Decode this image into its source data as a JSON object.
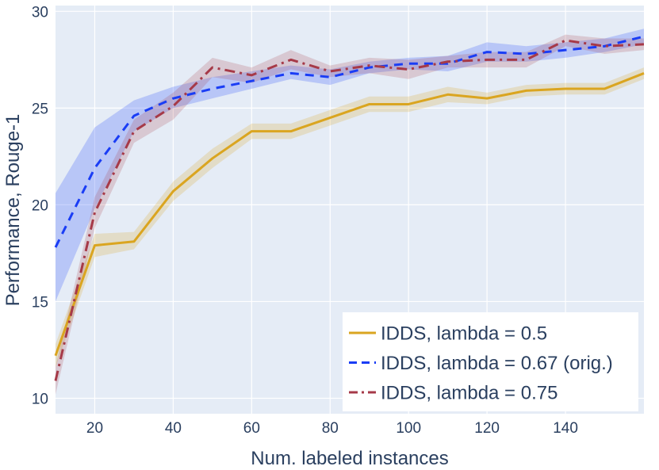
{
  "chart_data": {
    "type": "line",
    "title": "",
    "xlabel": "Num. labeled instances",
    "ylabel": "Performance, Rouge-1",
    "xlim": [
      10,
      160
    ],
    "ylim": [
      9.2,
      30.3
    ],
    "xticks": [
      20,
      40,
      60,
      80,
      100,
      120,
      140
    ],
    "yticks": [
      10,
      15,
      20,
      25,
      30
    ],
    "grid": true,
    "legend_position": "bottom-right",
    "x": [
      10,
      20,
      30,
      40,
      50,
      60,
      70,
      80,
      90,
      100,
      110,
      120,
      130,
      140,
      150,
      160
    ],
    "series": [
      {
        "name": "IDDS, lambda = 0.5",
        "color": "#daa520",
        "band_color": "rgba(218,165,32,0.22)",
        "dash": "solid",
        "values": [
          12.2,
          17.9,
          18.1,
          20.7,
          22.4,
          23.8,
          23.8,
          24.5,
          25.2,
          25.2,
          25.7,
          25.5,
          25.9,
          26.0,
          26.0,
          26.8
        ],
        "lower": [
          11.6,
          17.3,
          17.7,
          20.2,
          21.9,
          23.4,
          23.4,
          24.1,
          24.8,
          24.8,
          25.3,
          25.2,
          25.6,
          25.7,
          25.7,
          26.5
        ],
        "upper": [
          12.8,
          18.5,
          18.6,
          21.2,
          22.9,
          24.2,
          24.2,
          24.9,
          25.6,
          25.6,
          26.1,
          25.8,
          26.2,
          26.3,
          26.3,
          27.1
        ]
      },
      {
        "name": "IDDS, lambda = 0.67 (orig.)",
        "color": "#1a3df5",
        "band_color": "rgba(80,110,250,0.30)",
        "dash": "dash",
        "values": [
          17.8,
          21.9,
          24.6,
          25.5,
          26.0,
          26.4,
          26.8,
          26.6,
          27.1,
          27.3,
          27.3,
          27.9,
          27.8,
          28.0,
          28.2,
          28.7
        ],
        "lower": [
          15.0,
          19.8,
          23.8,
          25.0,
          25.5,
          26.0,
          26.5,
          26.2,
          26.8,
          27.0,
          26.9,
          27.4,
          27.4,
          27.6,
          27.9,
          28.3
        ],
        "upper": [
          20.6,
          24.0,
          25.4,
          26.1,
          26.6,
          26.9,
          27.2,
          27.0,
          27.4,
          27.6,
          27.7,
          28.4,
          28.2,
          28.4,
          28.6,
          29.1
        ]
      },
      {
        "name": "IDDS, lambda = 0.75",
        "color": "#a63a48",
        "band_color": "rgba(166,58,72,0.20)",
        "dash": "dashdot",
        "values": [
          10.9,
          19.6,
          23.8,
          25.1,
          27.1,
          26.7,
          27.5,
          26.9,
          27.2,
          27.0,
          27.4,
          27.5,
          27.5,
          28.5,
          28.2,
          28.3
        ],
        "lower": [
          10.2,
          18.8,
          23.2,
          24.4,
          26.6,
          26.3,
          27.0,
          26.6,
          26.8,
          26.5,
          27.1,
          27.1,
          27.1,
          28.2,
          27.8,
          28.0
        ],
        "upper": [
          11.6,
          20.4,
          24.4,
          25.8,
          27.6,
          27.1,
          28.0,
          27.2,
          27.6,
          27.5,
          27.7,
          27.9,
          27.9,
          28.8,
          28.6,
          28.6
        ]
      }
    ]
  }
}
